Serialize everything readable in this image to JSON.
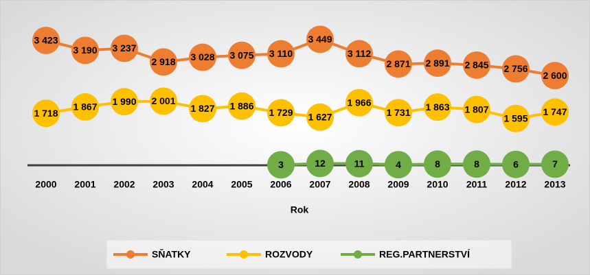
{
  "chart_data": {
    "type": "line",
    "x_label": "Rok",
    "categories": [
      "2000",
      "2001",
      "2002",
      "2003",
      "2004",
      "2005",
      "2006",
      "2007",
      "2008",
      "2009",
      "2010",
      "2011",
      "2012",
      "2013"
    ],
    "ylim": [
      500,
      4000
    ],
    "y2lim": [
      0,
      1000
    ],
    "legend": "bottom",
    "series": [
      {
        "name": "SŇATKY",
        "color": "#ED7D31",
        "values": [
          3423,
          3190,
          3237,
          2918,
          3028,
          3075,
          3110,
          3449,
          3112,
          2871,
          2891,
          2845,
          2756,
          2600
        ],
        "value_labels": [
          "3 423",
          "3 190",
          "3 237",
          "2 918",
          "3 028",
          "3 075",
          "3 110",
          "3 449",
          "3 112",
          "2 871",
          "2 891",
          "2 845",
          "2 756",
          "2 600"
        ]
      },
      {
        "name": "ROZVODY",
        "color": "#FFC000",
        "values": [
          1718,
          1867,
          1990,
          2001,
          1827,
          1886,
          1729,
          1627,
          1966,
          1731,
          1863,
          1807,
          1595,
          1747
        ],
        "value_labels": [
          "1 718",
          "1 867",
          "1 990",
          "2 001",
          "1 827",
          "1 886",
          "1 729",
          "1 627",
          "1 966",
          "1 731",
          "1 863",
          "1 807",
          "1 595",
          "1 747"
        ]
      },
      {
        "name": "REG.PARTNERSTVÍ",
        "color": "#70AD47",
        "axis": "y2",
        "values": [
          null,
          null,
          null,
          null,
          null,
          null,
          3,
          12,
          11,
          4,
          8,
          8,
          6,
          7
        ]
      }
    ]
  }
}
